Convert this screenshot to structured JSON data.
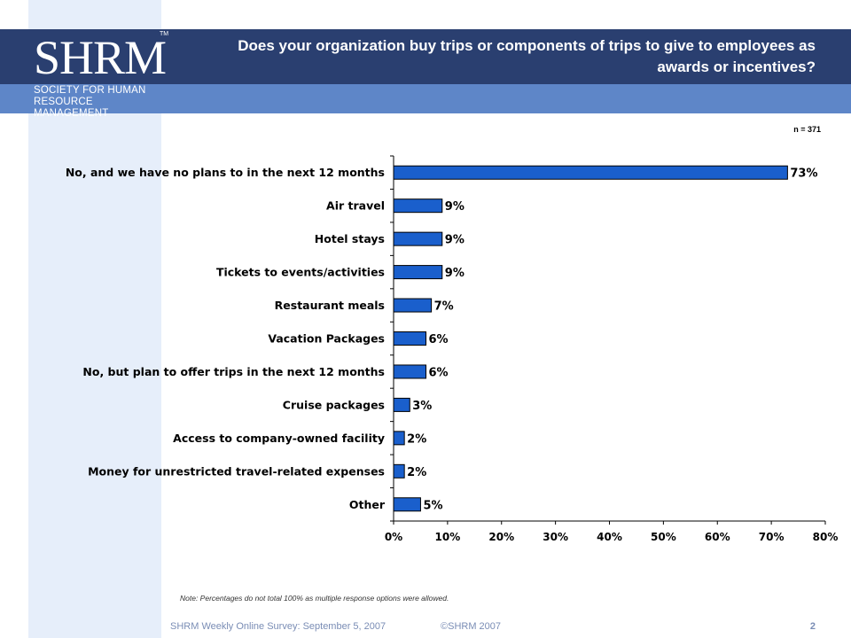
{
  "header": {
    "title": "Does your organization buy trips or components of trips to give to employees as awards or incentives?",
    "title_line1": "Does your organization buy trips or components of trips to give to employees as",
    "title_line2": "awards or incentives?"
  },
  "logo": {
    "letters": "SHRM",
    "tm": "TM",
    "line1": "SOCIETY FOR HUMAN",
    "line2": "RESOURCE MANAGEMENT"
  },
  "sample": "n = 371",
  "chart_data": {
    "type": "bar",
    "orientation": "horizontal",
    "categories": [
      "No, and we have no plans to in the next 12 months",
      "Air travel",
      "Hotel stays",
      "Tickets to events/activities",
      "Restaurant meals",
      "Vacation Packages",
      "No, but plan to offer trips in the next 12 months",
      "Cruise packages",
      "Access to company-owned facility",
      "Money for unrestricted travel-related expenses",
      "Other"
    ],
    "values": [
      73,
      9,
      9,
      9,
      7,
      6,
      6,
      3,
      2,
      2,
      5
    ],
    "value_labels": [
      "73%",
      "9%",
      "9%",
      "9%",
      "7%",
      "6%",
      "6%",
      "3%",
      "2%",
      "2%",
      "5%"
    ],
    "x_ticks": [
      "0%",
      "10%",
      "20%",
      "30%",
      "40%",
      "50%",
      "60%",
      "70%",
      "80%"
    ],
    "xlim": [
      0,
      80
    ],
    "grid": false,
    "bar_color": "#1a5fcc"
  },
  "note": "Note: Percentages do not total 100% as multiple response options were allowed.",
  "footer": {
    "survey": "SHRM Weekly Online Survey: September 5, 2007",
    "copyright": "©SHRM 2007",
    "page": "2"
  },
  "colors": {
    "header_dark": "#2a3f70",
    "header_light": "#5e86c8",
    "left_band": "#e6eefa"
  }
}
